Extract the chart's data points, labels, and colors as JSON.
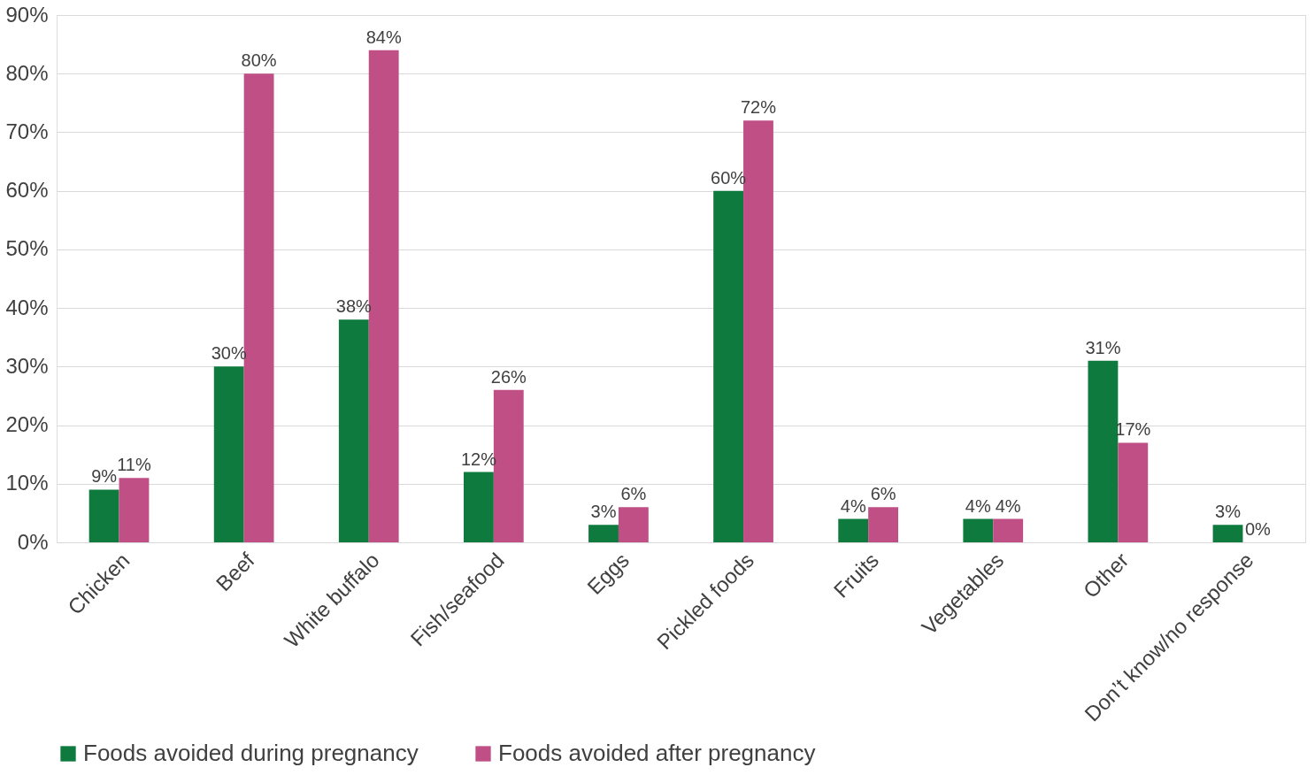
{
  "chart_data": {
    "type": "bar",
    "categories": [
      "Chicken",
      "Beef",
      "White buffalo",
      "Fish/seafood",
      "Eggs",
      "Pickled foods",
      "Fruits",
      "Vegetables",
      "Other",
      "Don’t know/no response"
    ],
    "series": [
      {
        "name": "Foods avoided during pregnancy",
        "color": "#0e7a3e",
        "values": [
          9,
          30,
          38,
          12,
          3,
          60,
          4,
          4,
          31,
          3
        ],
        "value_labels": [
          "9%",
          "30%",
          "38%",
          "12%",
          "3%",
          "60%",
          "4%",
          "4%",
          "31%",
          "3%"
        ]
      },
      {
        "name": "Foods avoided after pregnancy",
        "color": "#c04f85",
        "values": [
          11,
          80,
          84,
          26,
          6,
          72,
          6,
          4,
          17,
          0
        ],
        "value_labels": [
          "11%",
          "80%",
          "84%",
          "26%",
          "6%",
          "72%",
          "6%",
          "4%",
          "17%",
          "0%"
        ]
      }
    ],
    "ylim": [
      0,
      90
    ],
    "yticks": [
      {
        "value": 0,
        "label": "0%"
      },
      {
        "value": 10,
        "label": "10%"
      },
      {
        "value": 20,
        "label": "20%"
      },
      {
        "value": 30,
        "label": "30%"
      },
      {
        "value": 40,
        "label": "40%"
      },
      {
        "value": 50,
        "label": "50%"
      },
      {
        "value": 60,
        "label": "60%"
      },
      {
        "value": 70,
        "label": "70%"
      },
      {
        "value": 80,
        "label": "80%"
      },
      {
        "value": 90,
        "label": "90%"
      }
    ],
    "grid": "y",
    "legend": "bottom"
  }
}
